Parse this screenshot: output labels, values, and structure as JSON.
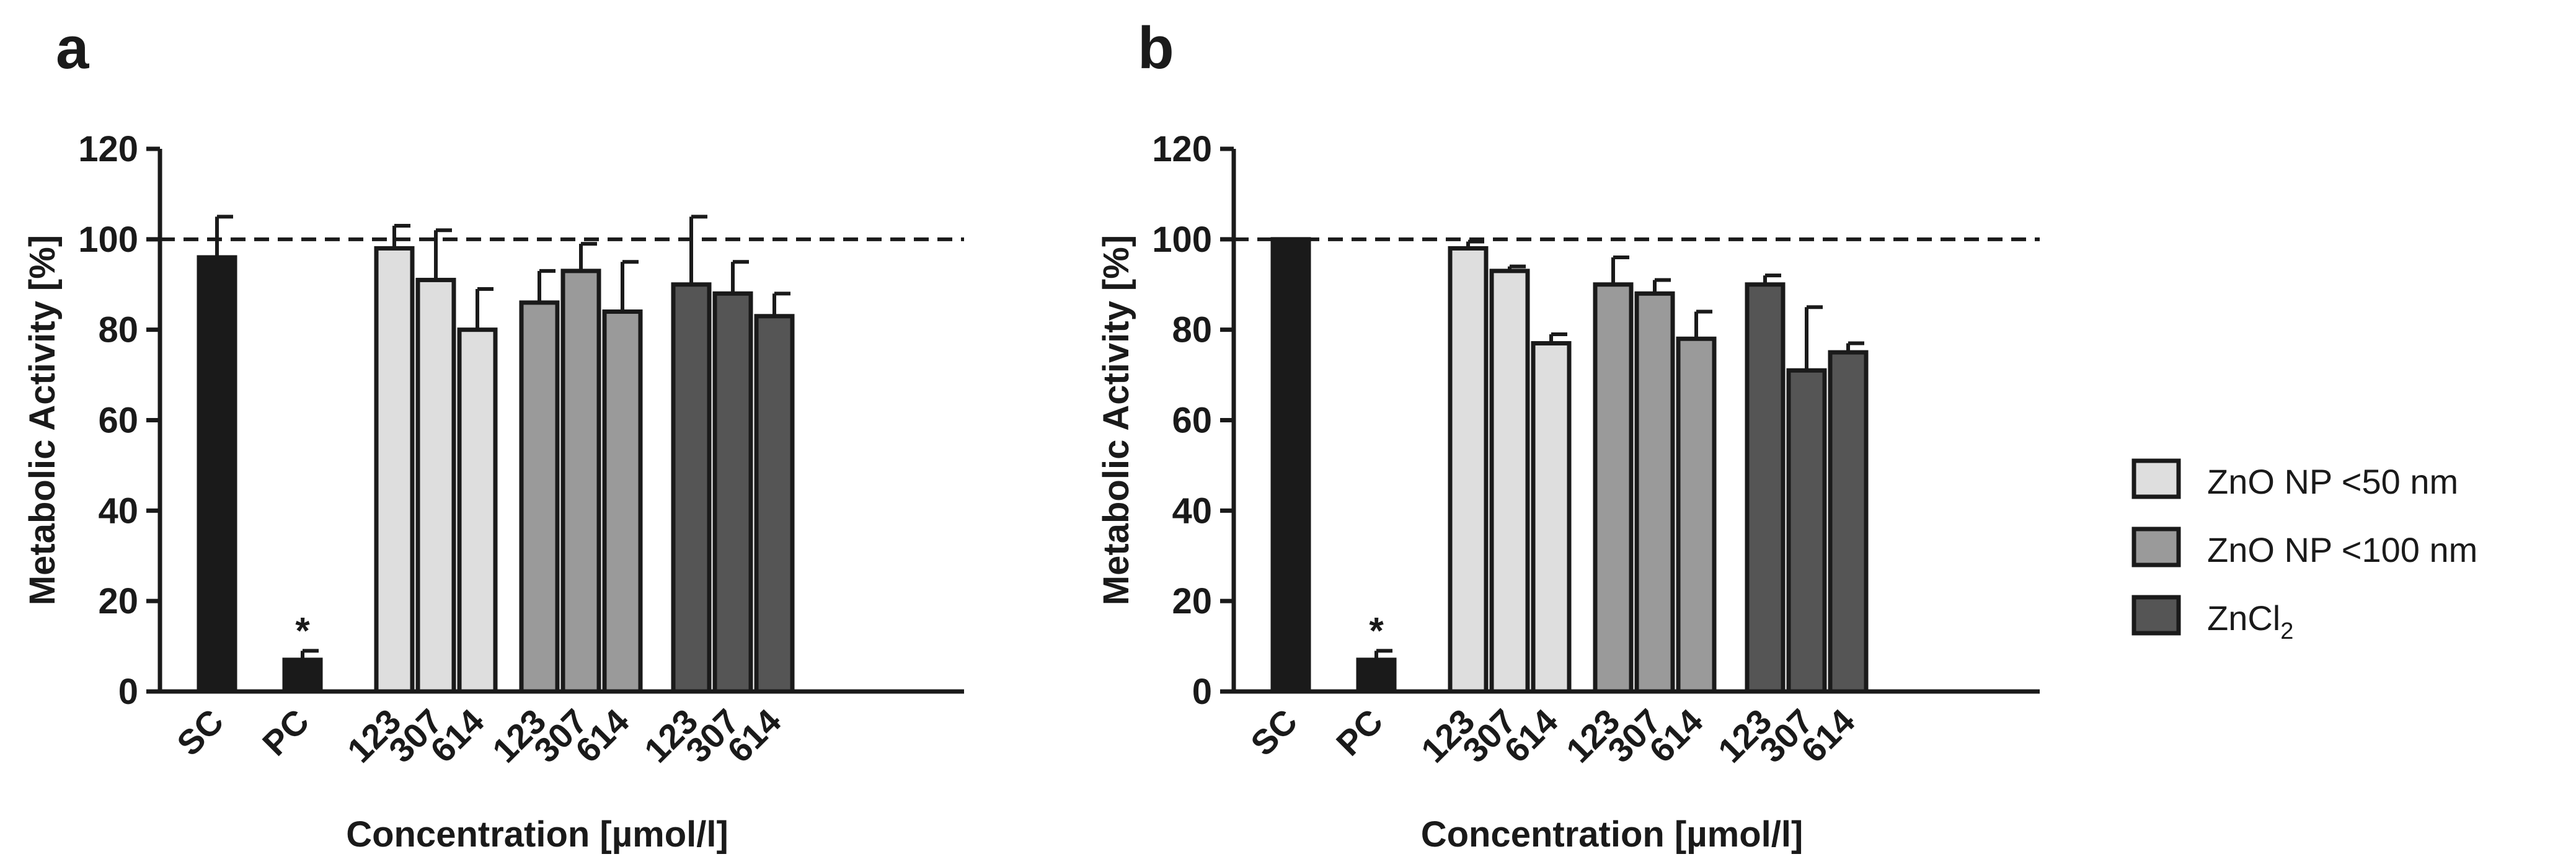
{
  "chart_data": [
    {
      "type": "bar",
      "panel_label": "a",
      "title": "",
      "ylabel": "Metabolic Activity [%]",
      "xlabel": "Concentration [µmol/l]",
      "ylim": [
        0,
        120
      ],
      "yticks": [
        0,
        20,
        40,
        60,
        80,
        100,
        120
      ],
      "reference_line": 100,
      "groups": [
        {
          "name": "SC",
          "bars": [
            {
              "label": "SC",
              "value": 96,
              "error": 9,
              "color": "#1a1a1a"
            }
          ]
        },
        {
          "name": "PC",
          "bars": [
            {
              "label": "PC",
              "value": 7,
              "error": 2,
              "color": "#1a1a1a",
              "annotation": "*"
            }
          ]
        },
        {
          "name": "ZnO NP <50 nm",
          "bars": [
            {
              "label": "123",
              "value": 98,
              "error": 5,
              "color": "#dedede"
            },
            {
              "label": "307",
              "value": 91,
              "error": 11,
              "color": "#dedede"
            },
            {
              "label": "614",
              "value": 80,
              "error": 9,
              "color": "#dedede"
            }
          ]
        },
        {
          "name": "ZnO NP <100 nm",
          "bars": [
            {
              "label": "123",
              "value": 86,
              "error": 7,
              "color": "#9a9a9a"
            },
            {
              "label": "307",
              "value": 93,
              "error": 6,
              "color": "#9a9a9a"
            },
            {
              "label": "614",
              "value": 84,
              "error": 11,
              "color": "#9a9a9a"
            }
          ]
        },
        {
          "name": "ZnCl2",
          "bars": [
            {
              "label": "123",
              "value": 90,
              "error": 15,
              "color": "#555555"
            },
            {
              "label": "307",
              "value": 88,
              "error": 7,
              "color": "#555555"
            },
            {
              "label": "614",
              "value": 83,
              "error": 5,
              "color": "#555555"
            }
          ]
        }
      ]
    },
    {
      "type": "bar",
      "panel_label": "b",
      "title": "",
      "ylabel": "Metabolic Activity [%]",
      "xlabel": "Concentration [µmol/l]",
      "ylim": [
        0,
        120
      ],
      "yticks": [
        0,
        20,
        40,
        60,
        80,
        100,
        120
      ],
      "reference_line": 100,
      "groups": [
        {
          "name": "SC",
          "bars": [
            {
              "label": "SC",
              "value": 100,
              "error": 0,
              "color": "#1a1a1a"
            }
          ]
        },
        {
          "name": "PC",
          "bars": [
            {
              "label": "PC",
              "value": 7,
              "error": 2,
              "color": "#1a1a1a",
              "annotation": "*"
            }
          ]
        },
        {
          "name": "ZnO NP <50 nm",
          "bars": [
            {
              "label": "123",
              "value": 98,
              "error": 1.5,
              "color": "#dedede"
            },
            {
              "label": "307",
              "value": 93,
              "error": 1,
              "color": "#dedede"
            },
            {
              "label": "614",
              "value": 77,
              "error": 2,
              "color": "#dedede"
            }
          ]
        },
        {
          "name": "ZnO NP <100 nm",
          "bars": [
            {
              "label": "123",
              "value": 90,
              "error": 6,
              "color": "#9a9a9a"
            },
            {
              "label": "307",
              "value": 88,
              "error": 3,
              "color": "#9a9a9a"
            },
            {
              "label": "614",
              "value": 78,
              "error": 6,
              "color": "#9a9a9a"
            }
          ]
        },
        {
          "name": "ZnCl2",
          "bars": [
            {
              "label": "123",
              "value": 90,
              "error": 2,
              "color": "#555555"
            },
            {
              "label": "307",
              "value": 71,
              "error": 14,
              "color": "#555555"
            },
            {
              "label": "614",
              "value": 75,
              "error": 2,
              "color": "#555555"
            }
          ]
        }
      ]
    }
  ],
  "legend": {
    "placement": "right",
    "items": [
      {
        "label": "ZnO NP <50 nm",
        "color": "#dedede"
      },
      {
        "label": "ZnO NP <100 nm",
        "color": "#9a9a9a"
      },
      {
        "label_main": "ZnCl",
        "label_sub": "2",
        "color": "#555555"
      }
    ]
  }
}
